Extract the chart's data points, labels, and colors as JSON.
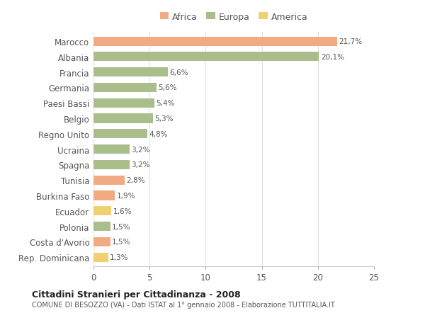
{
  "countries": [
    "Marocco",
    "Albania",
    "Francia",
    "Germania",
    "Paesi Bassi",
    "Belgio",
    "Regno Unito",
    "Ucraina",
    "Spagna",
    "Tunisia",
    "Burkina Faso",
    "Ecuador",
    "Polonia",
    "Costa d'Avorio",
    "Rep. Dominicana"
  ],
  "values": [
    21.7,
    20.1,
    6.6,
    5.6,
    5.4,
    5.3,
    4.8,
    3.2,
    3.2,
    2.8,
    1.9,
    1.6,
    1.5,
    1.5,
    1.3
  ],
  "labels": [
    "21,7%",
    "20,1%",
    "6,6%",
    "5,6%",
    "5,4%",
    "5,3%",
    "4,8%",
    "3,2%",
    "3,2%",
    "2,8%",
    "1,9%",
    "1,6%",
    "1,5%",
    "1,5%",
    "1,3%"
  ],
  "continent": [
    "Africa",
    "Europa",
    "Europa",
    "Europa",
    "Europa",
    "Europa",
    "Europa",
    "Europa",
    "Europa",
    "Africa",
    "Africa",
    "America",
    "Europa",
    "Africa",
    "America"
  ],
  "colors": {
    "Africa": "#F2AA82",
    "Europa": "#AABE8C",
    "America": "#F0D070"
  },
  "xlim": [
    0,
    25
  ],
  "xticks": [
    0,
    5,
    10,
    15,
    20,
    25
  ],
  "title1": "Cittadini Stranieri per Cittadinanza - 2008",
  "title2": "COMUNE DI BESOZZO (VA) - Dati ISTAT al 1° gennaio 2008 - Elaborazione TUTTITALIA.IT",
  "bg_color": "#FFFFFF",
  "bar_height": 0.6,
  "legend_items": [
    "Africa",
    "Europa",
    "America"
  ],
  "legend_colors": [
    "#F2AA82",
    "#AABE8C",
    "#F0D070"
  ],
  "text_color": "#555555",
  "grid_color": "#E0E0E0"
}
